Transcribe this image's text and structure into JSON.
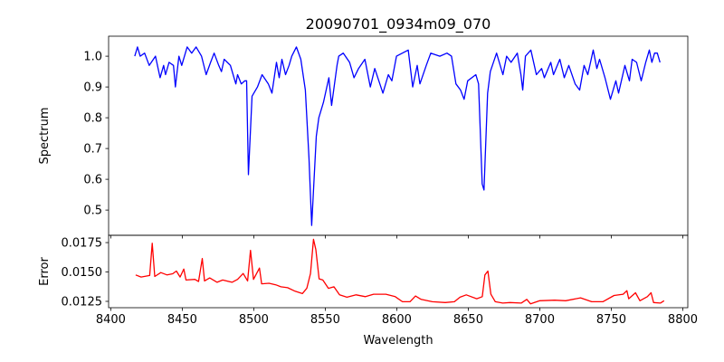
{
  "chart_data": [
    {
      "type": "line",
      "title": "20090701_0934m09_070",
      "xlabel": "",
      "ylabel": "Spectrum",
      "xlim": [
        8398.5,
        8803.5
      ],
      "ylim": [
        0.418,
        1.065
      ],
      "yticks": [
        0.5,
        0.6,
        0.7,
        0.8,
        0.9,
        1.0
      ],
      "ytick_labels": [
        "0.5",
        "0.6",
        "0.7",
        "0.8",
        "0.9",
        "1.0"
      ],
      "grid": false,
      "series": [
        {
          "name": "Spectrum",
          "color": "#0000ff",
          "x": [
            8416.8,
            8418.7,
            8420.6,
            8423.7,
            8426.9,
            8431.3,
            8434.5,
            8437.0,
            8438.3,
            8440.8,
            8443.9,
            8445.2,
            8447.7,
            8449.6,
            8453.4,
            8456.6,
            8459.7,
            8463.5,
            8466.7,
            8469.8,
            8472.3,
            8475.5,
            8477.4,
            8479.3,
            8483.7,
            8487.5,
            8488.7,
            8491.3,
            8493.8,
            8495.0,
            8496.3,
            8498.8,
            8502.6,
            8505.8,
            8510.2,
            8512.7,
            8515.9,
            8517.8,
            8519.7,
            8522.2,
            8524.7,
            8526.6,
            8529.8,
            8532.9,
            8536.1,
            8538.6,
            8540.5,
            8543.7,
            8545.5,
            8548.7,
            8552.5,
            8554.4,
            8558.2,
            8559.4,
            8562.6,
            8567.0,
            8570.1,
            8573.3,
            8577.7,
            8581.5,
            8584.6,
            8590.3,
            8594.1,
            8596.6,
            8599.8,
            8608.0,
            8611.1,
            8614.3,
            8616.2,
            8620.6,
            8623.8,
            8630.1,
            8635.1,
            8638.3,
            8641.4,
            8644.6,
            8647.1,
            8649.6,
            8655.3,
            8657.2,
            8659.7,
            8661.0,
            8663.5,
            8665.4,
            8669.8,
            8674.2,
            8676.8,
            8679.9,
            8684.3,
            8686.8,
            8688.1,
            8690.0,
            8693.8,
            8697.6,
            8701.3,
            8703.2,
            8707.7,
            8709.6,
            8714.0,
            8717.1,
            8720.3,
            8724.7,
            8727.9,
            8731.0,
            8733.6,
            8737.4,
            8739.9,
            8741.8,
            8745.6,
            8749.4,
            8753.2,
            8755.1,
            8759.5,
            8762.7,
            8764.6,
            8767.7,
            8770.9,
            8774.1,
            8776.6,
            8778.4,
            8780.3,
            8782.2,
            8784.1
          ],
          "y": [
            1.0,
            1.03,
            1.0,
            1.01,
            0.97,
            1.0,
            0.93,
            0.97,
            0.94,
            0.98,
            0.97,
            0.9,
            1.0,
            0.97,
            1.03,
            1.01,
            1.03,
            1.0,
            0.94,
            0.98,
            1.01,
            0.97,
            0.95,
            0.99,
            0.97,
            0.91,
            0.94,
            0.91,
            0.92,
            0.92,
            0.615,
            0.87,
            0.9,
            0.94,
            0.91,
            0.88,
            0.98,
            0.93,
            0.99,
            0.94,
            0.97,
            1.0,
            1.03,
            0.99,
            0.89,
            0.67,
            0.45,
            0.74,
            0.8,
            0.85,
            0.93,
            0.84,
            0.97,
            1.0,
            1.01,
            0.98,
            0.93,
            0.96,
            0.99,
            0.9,
            0.96,
            0.88,
            0.94,
            0.92,
            1.0,
            1.02,
            0.9,
            0.97,
            0.91,
            0.97,
            1.01,
            1.0,
            1.01,
            1.0,
            0.91,
            0.89,
            0.86,
            0.92,
            0.94,
            0.91,
            0.585,
            0.565,
            0.88,
            0.95,
            1.01,
            0.94,
            1.0,
            0.98,
            1.01,
            0.94,
            0.89,
            1.0,
            1.02,
            0.94,
            0.96,
            0.93,
            0.98,
            0.94,
            0.99,
            0.93,
            0.97,
            0.91,
            0.89,
            0.97,
            0.94,
            1.02,
            0.96,
            0.99,
            0.93,
            0.86,
            0.92,
            0.88,
            0.97,
            0.92,
            0.99,
            0.98,
            0.92,
            0.98,
            1.02,
            0.98,
            1.01,
            1.01,
            0.98
          ]
        }
      ]
    },
    {
      "type": "line",
      "title": "",
      "xlabel": "Wavelength",
      "ylabel": "Error",
      "xlim": [
        8398.5,
        8803.5
      ],
      "ylim": [
        0.01196,
        0.01812
      ],
      "xticks": [
        8400,
        8450,
        8500,
        8550,
        8600,
        8650,
        8700,
        8750,
        8800
      ],
      "xtick_labels": [
        "8400",
        "8450",
        "8500",
        "8550",
        "8600",
        "8650",
        "8700",
        "8750",
        "8800"
      ],
      "yticks": [
        0.0125,
        0.015,
        0.0175
      ],
      "ytick_labels": [
        "0.0125",
        "0.0150",
        "0.0175"
      ],
      "grid": false,
      "series": [
        {
          "name": "Error",
          "color": "#ff0000",
          "x": [
            8417.4,
            8421.2,
            8427.2,
            8429.0,
            8430.8,
            8435.0,
            8439.4,
            8443.3,
            8445.9,
            8448.5,
            8451.1,
            8452.6,
            8458.8,
            8461.4,
            8464.0,
            8465.6,
            8469.2,
            8474.4,
            8478.3,
            8484.8,
            8488.7,
            8492.6,
            8495.7,
            8497.7,
            8499.8,
            8504.0,
            8505.5,
            8510.7,
            8515.4,
            8519.0,
            8523.7,
            8528.9,
            8534.0,
            8537.1,
            8539.7,
            8541.8,
            8543.4,
            8545.7,
            8548.3,
            8552.2,
            8556.1,
            8560.0,
            8565.2,
            8571.6,
            8578.1,
            8583.8,
            8592.4,
            8598.9,
            8604.0,
            8609.2,
            8613.1,
            8617.0,
            8624.8,
            8633.9,
            8640.3,
            8644.2,
            8648.6,
            8655.9,
            8659.8,
            8661.6,
            8663.7,
            8665.8,
            8668.9,
            8674.1,
            8679.2,
            8687.0,
            8690.9,
            8693.5,
            8700.0,
            8710.4,
            8718.1,
            8728.5,
            8736.3,
            8744.1,
            8751.9,
            8758.3,
            8760.9,
            8762.2,
            8766.9,
            8770.0,
            8775.2,
            8777.8,
            8779.6,
            8784.3,
            8786.9
          ],
          "y": [
            0.01475,
            0.01457,
            0.0147,
            0.01744,
            0.01462,
            0.01495,
            0.01475,
            0.01485,
            0.01508,
            0.01457,
            0.01525,
            0.01432,
            0.01437,
            0.01419,
            0.01614,
            0.01424,
            0.01449,
            0.01412,
            0.01432,
            0.01412,
            0.01437,
            0.01487,
            0.01424,
            0.01684,
            0.01437,
            0.01533,
            0.01399,
            0.01404,
            0.01391,
            0.01374,
            0.01366,
            0.01336,
            0.01316,
            0.01361,
            0.01487,
            0.01778,
            0.0169,
            0.01442,
            0.01432,
            0.01361,
            0.01374,
            0.01305,
            0.01285,
            0.01305,
            0.0129,
            0.01311,
            0.01311,
            0.0129,
            0.01247,
            0.01247,
            0.01295,
            0.01267,
            0.01247,
            0.0124,
            0.01247,
            0.01285,
            0.01305,
            0.01272,
            0.0129,
            0.01475,
            0.01508,
            0.01311,
            0.01247,
            0.01235,
            0.0124,
            0.01235,
            0.01267,
            0.01229,
            0.01255,
            0.0126,
            0.01255,
            0.0128,
            0.01247,
            0.01247,
            0.013,
            0.01311,
            0.01341,
            0.01272,
            0.01323,
            0.01255,
            0.0129,
            0.01323,
            0.0124,
            0.01235,
            0.01255
          ]
        }
      ]
    }
  ]
}
